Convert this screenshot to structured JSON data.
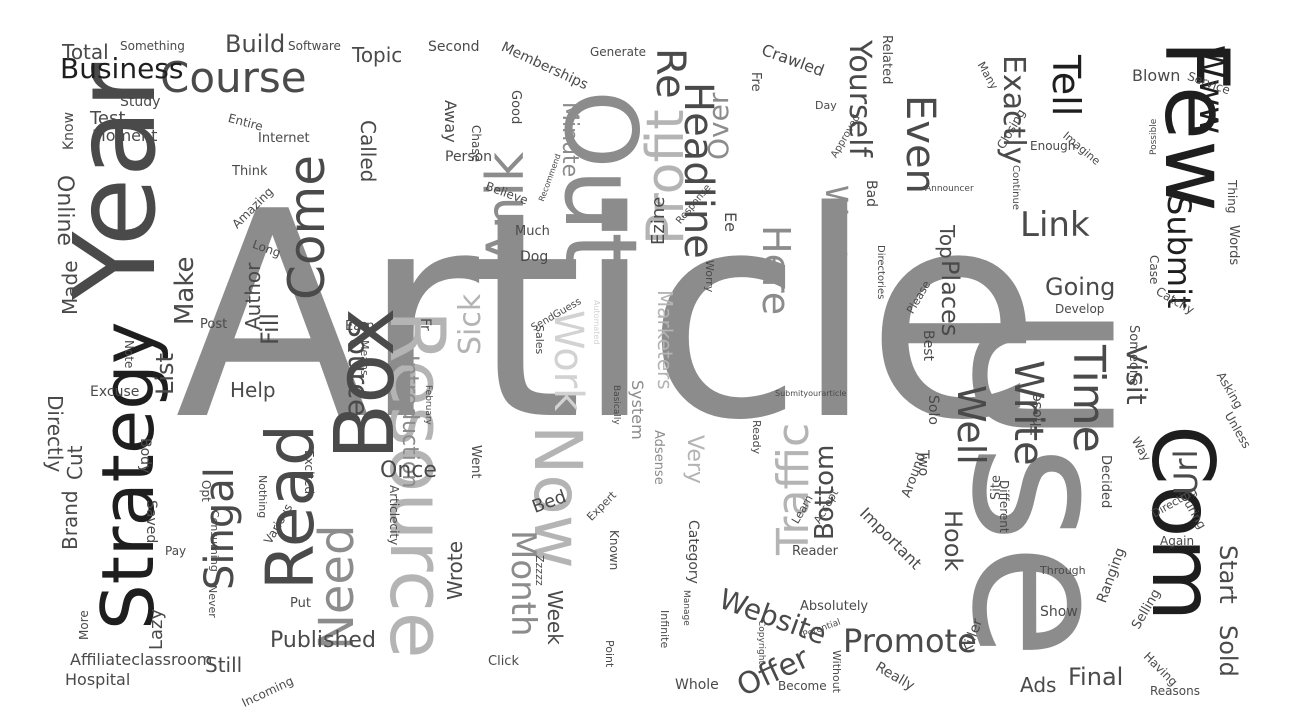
{
  "colors": {
    "background": "#ffffff",
    "black": "#1e1e1e",
    "dark": "#4a4a4a",
    "mid": "#8c8c8c",
    "light": "#b4b4b4",
    "faint": "#d2d2d2"
  },
  "words": [
    {
      "text": "Article",
      "tone": "mid"
    },
    {
      "text": "Use",
      "tone": "mid"
    },
    {
      "text": "Year",
      "tone": "dark"
    },
    {
      "text": "Few",
      "tone": "black"
    },
    {
      "text": "Out",
      "tone": "mid"
    },
    {
      "text": "Com",
      "tone": "black"
    },
    {
      "text": "Strategy",
      "tone": "black"
    },
    {
      "text": "Resource",
      "tone": "light"
    },
    {
      "text": "Box",
      "tone": "dark"
    },
    {
      "text": "Now",
      "tone": "light"
    },
    {
      "text": "Read",
      "tone": "dark"
    },
    {
      "text": "Course",
      "tone": "dark"
    },
    {
      "text": "Business",
      "tone": "black"
    },
    {
      "text": "Profit",
      "tone": "light"
    },
    {
      "text": "Submit",
      "tone": "black"
    },
    {
      "text": "Anik",
      "tone": "mid"
    },
    {
      "text": "Come",
      "tone": "dark"
    },
    {
      "text": "Headline",
      "tone": "dark"
    },
    {
      "text": "Yourself",
      "tone": "dark"
    },
    {
      "text": "Even",
      "tone": "dark"
    },
    {
      "text": "Exactly",
      "tone": "dark"
    },
    {
      "text": "Tell",
      "tone": "black"
    },
    {
      "text": "Www",
      "tone": "black"
    },
    {
      "text": "Link",
      "tone": "dark"
    },
    {
      "text": "Re",
      "tone": "dark"
    },
    {
      "text": "Over",
      "tone": "mid"
    },
    {
      "text": "Time",
      "tone": "dark"
    },
    {
      "text": "Write",
      "tone": "dark"
    },
    {
      "text": "Well",
      "tone": "dark"
    },
    {
      "text": "Traffic",
      "tone": "light"
    },
    {
      "text": "Work",
      "tone": "faint"
    },
    {
      "text": "Sick",
      "tone": "light"
    },
    {
      "text": "Here",
      "tone": "mid"
    },
    {
      "text": "Want",
      "tone": "mid"
    },
    {
      "text": "Source",
      "tone": "dark"
    },
    {
      "text": "Month",
      "tone": "mid"
    },
    {
      "text": "Need",
      "tone": "mid"
    },
    {
      "text": "Singal",
      "tone": "dark"
    },
    {
      "text": "Promote",
      "tone": "dark"
    },
    {
      "text": "Website",
      "tone": "dark"
    },
    {
      "text": "Visit",
      "tone": "dark"
    },
    {
      "text": "Url",
      "tone": "dark"
    },
    {
      "text": "Start",
      "tone": "dark"
    },
    {
      "text": "Sold",
      "tone": "dark"
    },
    {
      "text": "Going",
      "tone": "dark"
    },
    {
      "text": "Top",
      "tone": "dark"
    },
    {
      "text": "Places",
      "tone": "dark"
    },
    {
      "text": "Bottom",
      "tone": "dark"
    },
    {
      "text": "Hook",
      "tone": "dark"
    },
    {
      "text": "Offer",
      "tone": "dark"
    },
    {
      "text": "Final",
      "tone": "dark"
    },
    {
      "text": "Ads",
      "tone": "dark"
    },
    {
      "text": "Published",
      "tone": "dark"
    },
    {
      "text": "Make",
      "tone": "dark"
    },
    {
      "text": "List",
      "tone": "dark"
    },
    {
      "text": "Online",
      "tone": "dark"
    },
    {
      "text": "Made",
      "tone": "dark"
    },
    {
      "text": "Directly",
      "tone": "dark"
    },
    {
      "text": "Cut",
      "tone": "dark"
    },
    {
      "text": "Brand",
      "tone": "dark"
    },
    {
      "text": "Build",
      "tone": "dark"
    },
    {
      "text": "Topic",
      "tone": "dark"
    },
    {
      "text": "Total",
      "tone": "dark"
    },
    {
      "text": "Help",
      "tone": "dark"
    },
    {
      "text": "Affiliateclassroom",
      "tone": "dark"
    },
    {
      "text": "Hospital",
      "tone": "dark"
    },
    {
      "text": "Still",
      "tone": "dark"
    },
    {
      "text": "Lazy",
      "tone": "dark"
    },
    {
      "text": "Introduction",
      "tone": "mid"
    },
    {
      "text": "Wrote",
      "tone": "dark"
    },
    {
      "text": "Week",
      "tone": "dark"
    },
    {
      "text": "Once",
      "tone": "dark"
    },
    {
      "text": "Called",
      "tone": "dark"
    },
    {
      "text": "Author",
      "tone": "dark"
    },
    {
      "text": "Test",
      "tone": "dark"
    },
    {
      "text": "Know",
      "tone": "dark"
    },
    {
      "text": "Study",
      "tone": "dark"
    },
    {
      "text": "Something",
      "tone": "dark"
    },
    {
      "text": "Software",
      "tone": "dark"
    },
    {
      "text": "Second",
      "tone": "dark"
    },
    {
      "text": "Memberships",
      "tone": "dark"
    },
    {
      "text": "Generate",
      "tone": "dark"
    },
    {
      "text": "Crawled",
      "tone": "dark"
    },
    {
      "text": "Related",
      "tone": "dark"
    },
    {
      "text": "Blown",
      "tone": "dark"
    },
    {
      "text": "Service",
      "tone": "dark"
    },
    {
      "text": "Minute",
      "tone": "mid"
    },
    {
      "text": "Chase",
      "tone": "dark"
    },
    {
      "text": "Away",
      "tone": "dark"
    },
    {
      "text": "Good",
      "tone": "dark"
    },
    {
      "text": "Internet",
      "tone": "dark"
    },
    {
      "text": "Moment",
      "tone": "dark"
    },
    {
      "text": "Entire",
      "tone": "dark"
    },
    {
      "text": "Think",
      "tone": "dark"
    },
    {
      "text": "Amazing",
      "tone": "dark"
    },
    {
      "text": "Long",
      "tone": "dark"
    },
    {
      "text": "Post",
      "tone": "dark"
    },
    {
      "text": "Note",
      "tone": "dark"
    },
    {
      "text": "Excuse",
      "tone": "dark"
    },
    {
      "text": "Body",
      "tone": "dark"
    },
    {
      "text": "Earn",
      "tone": "dark"
    },
    {
      "text": "Means",
      "tone": "dark"
    },
    {
      "text": "Excited",
      "tone": "dark"
    },
    {
      "text": "Saved",
      "tone": "dark"
    },
    {
      "text": "Pay",
      "tone": "dark"
    },
    {
      "text": "Opt",
      "tone": "dark"
    },
    {
      "text": "Various",
      "tone": "dark"
    },
    {
      "text": "Put",
      "tone": "dark"
    },
    {
      "text": "Nothing",
      "tone": "dark"
    },
    {
      "text": "Consuming",
      "tone": "dark"
    },
    {
      "text": "Never",
      "tone": "dark"
    },
    {
      "text": "More",
      "tone": "dark"
    },
    {
      "text": "Incoming",
      "tone": "dark"
    },
    {
      "text": "Articlecity",
      "tone": "dark"
    },
    {
      "text": "Fr",
      "tone": "dark"
    },
    {
      "text": "Went",
      "tone": "dark"
    },
    {
      "text": "Bed",
      "tone": "dark"
    },
    {
      "text": "Known",
      "tone": "dark"
    },
    {
      "text": "Expert",
      "tone": "dark"
    },
    {
      "text": "Click",
      "tone": "dark"
    },
    {
      "text": "Point",
      "tone": "dark"
    },
    {
      "text": "Whole",
      "tone": "dark"
    },
    {
      "text": "Infinite",
      "tone": "dark"
    },
    {
      "text": "Zzzzz",
      "tone": "dark"
    },
    {
      "text": "Copyright",
      "tone": "dark"
    },
    {
      "text": "Become",
      "tone": "dark"
    },
    {
      "text": "Potential",
      "tone": "dark"
    },
    {
      "text": "Without",
      "tone": "dark"
    },
    {
      "text": "Really",
      "tone": "dark"
    },
    {
      "text": "Absolutely",
      "tone": "dark"
    },
    {
      "text": "Reader",
      "tone": "dark"
    },
    {
      "text": "Learn",
      "tone": "dark"
    },
    {
      "text": "Accept",
      "tone": "dark"
    },
    {
      "text": "Important",
      "tone": "dark"
    },
    {
      "text": "Around",
      "tone": "dark"
    },
    {
      "text": "Two",
      "tone": "dark"
    },
    {
      "text": "Site",
      "tone": "dark"
    },
    {
      "text": "Different",
      "tone": "dark"
    },
    {
      "text": "Killer",
      "tone": "dark"
    },
    {
      "text": "Show",
      "tone": "dark"
    },
    {
      "text": "Through",
      "tone": "dark"
    },
    {
      "text": "Ranging",
      "tone": "dark"
    },
    {
      "text": "Selling",
      "tone": "dark"
    },
    {
      "text": "Having",
      "tone": "dark"
    },
    {
      "text": "Reasons",
      "tone": "dark"
    },
    {
      "text": "Decided",
      "tone": "dark"
    },
    {
      "text": "Again",
      "tone": "dark"
    },
    {
      "text": "Directing",
      "tone": "dark"
    },
    {
      "text": "During",
      "tone": "dark"
    },
    {
      "text": "Way",
      "tone": "dark"
    },
    {
      "text": "Asking",
      "tone": "dark"
    },
    {
      "text": "Unless",
      "tone": "dark"
    },
    {
      "text": "Someone",
      "tone": "dark"
    },
    {
      "text": "Develop",
      "tone": "dark"
    },
    {
      "text": "Catchy",
      "tone": "dark"
    },
    {
      "text": "Case",
      "tone": "dark"
    },
    {
      "text": "Words",
      "tone": "dark"
    },
    {
      "text": "Thing",
      "tone": "dark"
    },
    {
      "text": "Possible",
      "tone": "dark"
    },
    {
      "text": "Imagine",
      "tone": "dark"
    },
    {
      "text": "Enough",
      "tone": "dark"
    },
    {
      "text": "Continue",
      "tone": "dark"
    },
    {
      "text": "Announcer",
      "tone": "dark"
    },
    {
      "text": "Closing",
      "tone": "dark"
    },
    {
      "text": "Many",
      "tone": "dark"
    },
    {
      "text": "Day",
      "tone": "dark"
    },
    {
      "text": "Approved",
      "tone": "dark"
    },
    {
      "text": "Response",
      "tone": "dark"
    },
    {
      "text": "Recommend",
      "tone": "dark"
    },
    {
      "text": "Believe",
      "tone": "dark"
    },
    {
      "text": "Much",
      "tone": "dark"
    },
    {
      "text": "Dog",
      "tone": "dark"
    },
    {
      "text": "Person",
      "tone": "dark"
    },
    {
      "text": "Ezine",
      "tone": "dark"
    },
    {
      "text": "Marketers",
      "tone": "light"
    },
    {
      "text": "Bad",
      "tone": "dark"
    },
    {
      "text": "Directories",
      "tone": "dark"
    },
    {
      "text": "Shtml",
      "tone": "mid"
    },
    {
      "text": "Best",
      "tone": "dark"
    },
    {
      "text": "Solo",
      "tone": "dark"
    },
    {
      "text": "Those",
      "tone": "dark"
    },
    {
      "text": "Please",
      "tone": "dark"
    },
    {
      "text": "Category",
      "tone": "dark"
    },
    {
      "text": "Manage",
      "tone": "dark"
    },
    {
      "text": "Very",
      "tone": "light"
    },
    {
      "text": "Adsense",
      "tone": "mid"
    },
    {
      "text": "February",
      "tone": "dark"
    },
    {
      "text": "Basically",
      "tone": "dark"
    },
    {
      "text": "System",
      "tone": "mid"
    },
    {
      "text": "Ready",
      "tone": "dark"
    },
    {
      "text": "Submityourarticle",
      "tone": "dark"
    },
    {
      "text": "Sales",
      "tone": "dark"
    },
    {
      "text": "SendGuess",
      "tone": "dark"
    },
    {
      "text": "Worry",
      "tone": "dark"
    },
    {
      "text": "Ee",
      "tone": "dark"
    },
    {
      "text": "Fre",
      "tone": "dark"
    },
    {
      "text": "Automated",
      "tone": "faint"
    },
    {
      "text": "Fill",
      "tone": "dark"
    }
  ]
}
